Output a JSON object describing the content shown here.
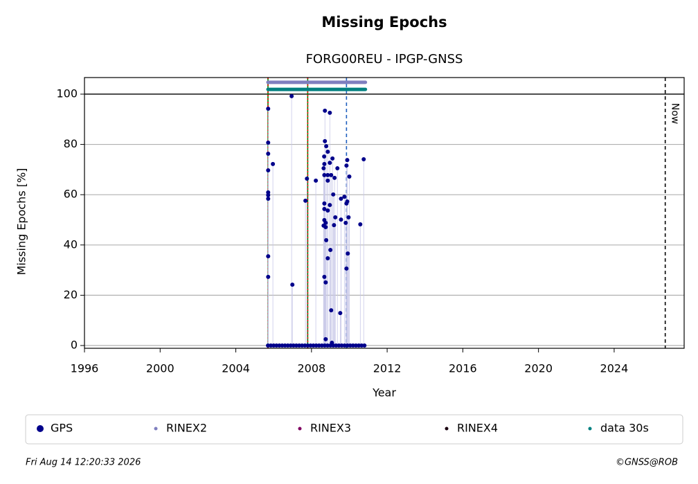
{
  "chart_data": {
    "type": "scatter",
    "title": "Missing Epochs",
    "subtitle": "FORG00REU - IPGP-GNSS",
    "x_label": "Year",
    "y_label": "Missing Epochs [%]",
    "xlim": [
      1996,
      2027.7
    ],
    "ylim": [
      -1.1,
      106.6
    ],
    "xticks": [
      1996,
      2000,
      2004,
      2008,
      2012,
      2016,
      2020,
      2024
    ],
    "yticks": [
      0,
      20,
      40,
      60,
      80,
      100
    ],
    "grid": true,
    "hline": 100,
    "vlines": [
      {
        "x": 2005.7,
        "color": "#008000",
        "overlay": "#ff0000",
        "dash": "solid"
      },
      {
        "x": 2007.8,
        "color": "#008000",
        "overlay": "#ff0000",
        "dash": "solid"
      },
      {
        "x": 2009.85,
        "color": "#1f5fbf",
        "dash": "dashed"
      },
      {
        "x": 2026.7,
        "color": "#000000",
        "dash": "dashed",
        "label": "Now"
      }
    ],
    "series": [
      {
        "name": "GPS",
        "color": "#00008b",
        "mode": "points",
        "marker_size": 3,
        "x": [
          2005.71,
          2005.71,
          2005.71,
          2005.71,
          2005.71,
          2005.71,
          2005.71,
          2005.71,
          2005.71,
          2005.96,
          2006.95,
          2006.99,
          2007.68,
          2007.76,
          2008.23,
          2008.71,
          2008.97,
          2008.71,
          2008.78,
          2008.86,
          2008.67,
          2009.11,
          2008.97,
          2008.68,
          2008.64,
          2009.37,
          2008.68,
          2008.86,
          2009.04,
          2009.22,
          2008.86,
          2009.15,
          2008.68,
          2008.97,
          2008.68,
          2008.86,
          2009.26,
          2008.68,
          2008.75,
          2008.64,
          2008.75,
          2009.19,
          2008.78,
          2008.86,
          2009.0,
          2008.68,
          2008.75,
          2009.04,
          2009.52,
          2009.56,
          2009.74,
          2009.56,
          2009.81,
          2009.85,
          2009.89,
          2010.0,
          2009.96,
          2009.89,
          2009.85,
          2009.92,
          2009.85,
          2010.58,
          2010.76,
          2008.75,
          2009.08,
          2005.7,
          2005.85,
          2006.0,
          2006.15,
          2006.3,
          2006.45,
          2006.6,
          2006.75,
          2006.9,
          2007.05,
          2007.2,
          2007.35,
          2007.5,
          2007.65,
          2007.8,
          2007.95,
          2008.1,
          2008.25,
          2008.4,
          2008.55,
          2008.7,
          2008.85,
          2009.0,
          2009.15,
          2009.3,
          2009.45,
          2009.6,
          2009.75,
          2009.9,
          2010.05,
          2010.2,
          2010.35,
          2010.5,
          2010.65,
          2010.8
        ],
        "values": [
          94.2,
          80.7,
          76.3,
          69.7,
          60.9,
          59.8,
          58.4,
          35.5,
          27.3,
          72.2,
          99.2,
          24.2,
          57.6,
          66.4,
          65.6,
          93.4,
          92.6,
          81.3,
          79.3,
          77.1,
          75.2,
          74.4,
          72.7,
          72.2,
          70.5,
          70.5,
          67.8,
          67.8,
          67.8,
          66.7,
          65.6,
          60.1,
          56.5,
          55.9,
          54.3,
          53.7,
          51.0,
          49.9,
          48.8,
          47.7,
          47.1,
          47.9,
          41.9,
          34.7,
          38.0,
          27.3,
          25.1,
          14.0,
          12.9,
          58.4,
          59.2,
          50.1,
          48.8,
          71.6,
          73.8,
          67.2,
          51.0,
          57.3,
          56.5,
          36.6,
          30.6,
          48.2,
          74.1,
          2.5,
          1.1,
          0,
          0,
          0,
          0,
          0,
          0,
          0,
          0,
          0,
          0,
          0,
          0,
          0,
          0,
          0,
          0,
          0,
          0,
          0,
          0,
          0,
          0,
          0,
          0,
          0,
          0,
          0,
          0,
          0,
          0,
          0,
          0,
          0,
          0,
          0
        ]
      },
      {
        "name": "RINEX2",
        "color": "#7f7fbf",
        "mode": "span",
        "marker_size": 2,
        "x": [
          2005.7,
          2010.85
        ],
        "values": [
          104.7,
          104.7
        ]
      },
      {
        "name": "RINEX3",
        "color": "#800060",
        "mode": "points",
        "marker_size": 2,
        "x": [],
        "values": []
      },
      {
        "name": "RINEX4",
        "color": "#1a0010",
        "mode": "points",
        "marker_size": 2,
        "x": [],
        "values": []
      },
      {
        "name": "data 30s",
        "color": "#008080",
        "mode": "span",
        "marker_size": 2,
        "x": [
          2005.7,
          2010.85
        ],
        "values": [
          101.9,
          101.9
        ]
      }
    ],
    "timestamp": "Fri Aug 14 12:20:33 2026",
    "credit": "©GNSS@ROB"
  }
}
